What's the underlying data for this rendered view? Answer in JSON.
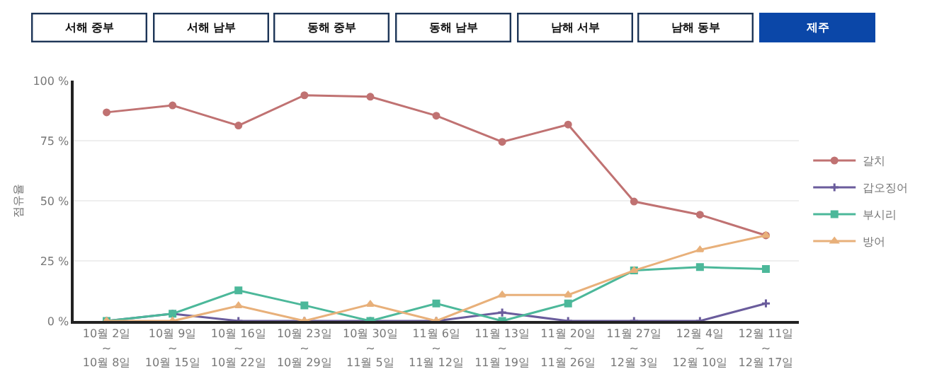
{
  "chart_data": {
    "type": "line",
    "ylabel": "점유율",
    "annotations": [
      "서해 중부",
      "서해 남부",
      "동해 중부",
      "동해 남부",
      "남해 서부",
      "남해 동부",
      "제주"
    ],
    "categories": [
      "10월 2일\n~\n10월 8일",
      "10월 9일\n~\n10월 15일",
      "10월 16일\n~\n10월 22일",
      "10월 23일\n~\n10월 29일",
      "10월 30일\n~\n11월 5일",
      "11월 6일\n~\n11월 12일",
      "11월 13일\n~\n11월 19일",
      "11월 20일\n~\n11월 26일",
      "11월 27일\n~\n12월 3일",
      "12월 4일\n~\n12월 10일",
      "12월 11일\n~\n12월 17일"
    ],
    "series": [
      {
        "name": "갈치",
        "color": "#c07272",
        "marker": "circle",
        "values": [
          86.8,
          89.7,
          81.3,
          93.9,
          93.3,
          85.4,
          74.5,
          81.7,
          49.7,
          44.2,
          35.6
        ]
      },
      {
        "name": "갑오징어",
        "color": "#6a5c9c",
        "marker": "cross",
        "values": [
          0,
          3,
          0,
          0,
          0,
          0,
          3.5,
          0,
          0,
          0,
          7.3
        ]
      },
      {
        "name": "부시리",
        "color": "#4cb89a",
        "marker": "square",
        "values": [
          0,
          3,
          12.7,
          6.5,
          0,
          7.3,
          0,
          7.3,
          21,
          22.4,
          21.6
        ]
      },
      {
        "name": "방어",
        "color": "#e8b07a",
        "marker": "triangle",
        "values": [
          0,
          0,
          6.3,
          0,
          6.9,
          0,
          10.8,
          10.8,
          21,
          29.6,
          35.6
        ]
      }
    ],
    "ylim": [
      0,
      100
    ],
    "yticks": [
      {
        "value": 0,
        "label": "0 %"
      },
      {
        "value": 25,
        "label": "25 %"
      },
      {
        "value": 50,
        "label": "50 %"
      },
      {
        "value": 75,
        "label": "75 %"
      },
      {
        "value": 100,
        "label": "100 %"
      }
    ],
    "grid": "y",
    "legend": "right",
    "line_style": "solid"
  }
}
